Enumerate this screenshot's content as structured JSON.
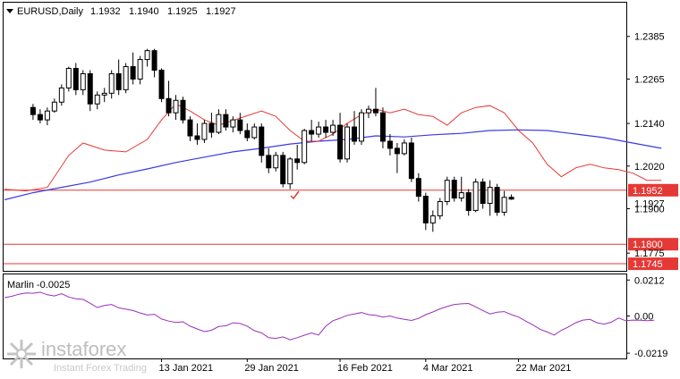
{
  "chart_data": {
    "type": "candlestick",
    "symbol_label": "EURUSD,Daily",
    "ohlc_header": [
      "1.1932",
      "1.1940",
      "1.1925",
      "1.1927"
    ],
    "price_axis": {
      "ylim": [
        1.1725,
        1.248
      ],
      "tick_labels": [
        "1.2385",
        "1.2265",
        "1.2140",
        "1.2020",
        "1.1900",
        "1.1775"
      ]
    },
    "x_tick_labels": [
      "13 Jan 2021",
      "29 Jan 2021",
      "16 Feb 2021",
      "4 Mar 2021",
      "22 Mar 2021"
    ],
    "x_tick_index": [
      22,
      34,
      47,
      59,
      72
    ],
    "levels": [
      {
        "label": "1.1952",
        "value": 1.1952
      },
      {
        "label": "1.1800",
        "value": 1.18
      },
      {
        "label": "1.1745",
        "value": 1.1745
      }
    ],
    "current_price_label": "1.1927",
    "current_price": 1.1927,
    "colors": {
      "level": "#e53935",
      "ma_fast": "#e53935",
      "ma_slow": "#3a3ae6",
      "marlin": "#9b30b8",
      "candle": "#000000"
    },
    "candles": [
      [
        1.2185,
        1.2195,
        1.215,
        1.2165
      ],
      [
        1.2165,
        1.218,
        1.214,
        1.215
      ],
      [
        1.215,
        1.2185,
        1.2135,
        1.2175
      ],
      [
        1.2175,
        1.221,
        1.217,
        1.22
      ],
      [
        1.22,
        1.225,
        1.219,
        1.224
      ],
      [
        1.224,
        1.23,
        1.223,
        1.2295
      ],
      [
        1.2295,
        1.231,
        1.222,
        1.2235
      ],
      [
        1.2235,
        1.229,
        1.222,
        1.228
      ],
      [
        1.228,
        1.229,
        1.2175,
        1.2195
      ],
      [
        1.2195,
        1.223,
        1.218,
        1.222
      ],
      [
        1.222,
        1.224,
        1.22,
        1.2225
      ],
      [
        1.2225,
        1.229,
        1.221,
        1.228
      ],
      [
        1.228,
        1.232,
        1.222,
        1.2235
      ],
      [
        1.2235,
        1.231,
        1.2225,
        1.23
      ],
      [
        1.23,
        1.234,
        1.225,
        1.2265
      ],
      [
        1.2265,
        1.233,
        1.225,
        1.232
      ],
      [
        1.232,
        1.235,
        1.23,
        1.2345
      ],
      [
        1.2345,
        1.235,
        1.227,
        1.229
      ],
      [
        1.229,
        1.2295,
        1.22,
        1.221
      ],
      [
        1.221,
        1.226,
        1.216,
        1.217
      ],
      [
        1.217,
        1.222,
        1.215,
        1.2205
      ],
      [
        1.2205,
        1.2215,
        1.214,
        1.215
      ],
      [
        1.215,
        1.216,
        1.209,
        1.2105
      ],
      [
        1.2105,
        1.214,
        1.208,
        1.2095
      ],
      [
        1.2095,
        1.215,
        1.2085,
        1.214
      ],
      [
        1.214,
        1.217,
        1.21,
        1.2115
      ],
      [
        1.2115,
        1.218,
        1.211,
        1.2165
      ],
      [
        1.2165,
        1.218,
        1.212,
        1.213
      ],
      [
        1.213,
        1.216,
        1.2115,
        1.215
      ],
      [
        1.215,
        1.217,
        1.211,
        1.212
      ],
      [
        1.212,
        1.214,
        1.209,
        1.21
      ],
      [
        1.21,
        1.214,
        1.2095,
        1.213
      ],
      [
        1.213,
        1.214,
        1.203,
        1.205
      ],
      [
        1.205,
        1.207,
        1.2,
        1.2015
      ],
      [
        1.2015,
        1.206,
        1.2005,
        1.205
      ],
      [
        1.205,
        1.206,
        1.196,
        1.197
      ],
      [
        1.197,
        1.2045,
        1.1955,
        1.204
      ],
      [
        1.204,
        1.208,
        1.201,
        1.203
      ],
      [
        1.203,
        1.2125,
        1.2025,
        1.212
      ],
      [
        1.212,
        1.215,
        1.209,
        1.211
      ],
      [
        1.211,
        1.2145,
        1.21,
        1.213
      ],
      [
        1.213,
        1.215,
        1.21,
        1.2115
      ],
      [
        1.2115,
        1.215,
        1.2105,
        1.2135
      ],
      [
        1.2135,
        1.217,
        1.203,
        1.204
      ],
      [
        1.204,
        1.214,
        1.203,
        1.213
      ],
      [
        1.213,
        1.2175,
        1.208,
        1.209
      ],
      [
        1.209,
        1.218,
        1.208,
        1.217
      ],
      [
        1.217,
        1.219,
        1.2155,
        1.218
      ],
      [
        1.218,
        1.224,
        1.216,
        1.217
      ],
      [
        1.217,
        1.2185,
        1.207,
        1.209
      ],
      [
        1.209,
        1.211,
        1.205,
        1.207
      ],
      [
        1.207,
        1.2085,
        1.2,
        1.2055
      ],
      [
        1.2055,
        1.2095,
        1.205,
        1.2085
      ],
      [
        1.2085,
        1.21,
        1.1975,
        1.1985
      ],
      [
        1.1985,
        1.2,
        1.192,
        1.1935
      ],
      [
        1.1935,
        1.1945,
        1.184,
        1.186
      ],
      [
        1.186,
        1.1895,
        1.1835,
        1.188
      ],
      [
        1.188,
        1.193,
        1.187,
        1.192
      ],
      [
        1.192,
        1.199,
        1.191,
        1.198
      ],
      [
        1.198,
        1.199,
        1.192,
        1.193
      ],
      [
        1.193,
        1.199,
        1.192,
        1.1945
      ],
      [
        1.1945,
        1.1955,
        1.188,
        1.1895
      ],
      [
        1.1895,
        1.1985,
        1.189,
        1.1975
      ],
      [
        1.1975,
        1.1985,
        1.19,
        1.1915
      ],
      [
        1.1915,
        1.198,
        1.188,
        1.196
      ],
      [
        1.196,
        1.197,
        1.188,
        1.189
      ],
      [
        1.189,
        1.195,
        1.188,
        1.1932
      ],
      [
        1.1932,
        1.194,
        1.1925,
        1.1927
      ]
    ],
    "x_offset": 4,
    "ma_fast": [
      [
        0,
        1.1955
      ],
      [
        3,
        1.195
      ],
      [
        6,
        1.196
      ],
      [
        9,
        1.205
      ],
      [
        11,
        1.2085
      ],
      [
        14,
        1.2065
      ],
      [
        17,
        1.206
      ],
      [
        20,
        1.2095
      ],
      [
        22,
        1.215
      ],
      [
        24,
        1.2195
      ],
      [
        26,
        1.2175
      ],
      [
        28,
        1.215
      ],
      [
        30,
        1.2135
      ],
      [
        33,
        1.2155
      ],
      [
        36,
        1.2175
      ],
      [
        38,
        1.216
      ],
      [
        40,
        1.212
      ],
      [
        42,
        1.209
      ],
      [
        44,
        1.209
      ],
      [
        46,
        1.211
      ],
      [
        48,
        1.214
      ],
      [
        50,
        1.2165
      ],
      [
        52,
        1.218
      ],
      [
        54,
        1.217
      ],
      [
        56,
        1.218
      ],
      [
        58,
        1.2165
      ],
      [
        60,
        1.216
      ],
      [
        62,
        1.2135
      ],
      [
        64,
        1.217
      ],
      [
        66,
        1.2185
      ],
      [
        68,
        1.219
      ],
      [
        70,
        1.217
      ],
      [
        72,
        1.212
      ],
      [
        74,
        1.2085
      ],
      [
        76,
        1.2025
      ],
      [
        78,
        1.199
      ],
      [
        80,
        1.2015
      ],
      [
        82,
        1.2025
      ],
      [
        84,
        1.2015
      ],
      [
        86,
        1.201
      ],
      [
        88,
        1.2
      ],
      [
        90,
        1.198
      ],
      [
        92,
        1.198
      ]
    ],
    "ma_slow": [
      [
        0,
        1.1925
      ],
      [
        4,
        1.1945
      ],
      [
        8,
        1.196
      ],
      [
        12,
        1.1975
      ],
      [
        16,
        1.1995
      ],
      [
        20,
        1.2012
      ],
      [
        24,
        1.203
      ],
      [
        28,
        1.2045
      ],
      [
        32,
        1.206
      ],
      [
        36,
        1.207
      ],
      [
        40,
        1.2082
      ],
      [
        44,
        1.209
      ],
      [
        48,
        1.2095
      ],
      [
        52,
        1.2105
      ],
      [
        56,
        1.2102
      ],
      [
        60,
        1.2108
      ],
      [
        64,
        1.2112
      ],
      [
        68,
        1.212
      ],
      [
        72,
        1.2122
      ],
      [
        76,
        1.212
      ],
      [
        80,
        1.211
      ],
      [
        84,
        1.21
      ],
      [
        88,
        1.2085
      ],
      [
        92,
        1.207
      ]
    ],
    "marlin": {
      "label": "Marlin -0.0025",
      "ylim": [
        -0.025,
        0.0245
      ],
      "tick_labels": [
        "0.0212",
        "0.00",
        "-0.0219"
      ],
      "tick_values": [
        0.0212,
        0.0,
        -0.0219
      ],
      "values": [
        0.0108,
        0.0116,
        0.0128,
        0.0136,
        0.0134,
        0.014,
        0.0125,
        0.0118,
        0.0132,
        0.0112,
        0.0102,
        0.0098,
        0.0075,
        0.005,
        0.0062,
        0.0068,
        0.0048,
        0.004,
        0.0032,
        0.0018,
        0.0006,
        0.001,
        -0.0018,
        -0.003,
        -0.0038,
        -0.0034,
        -0.006,
        -0.0076,
        -0.0092,
        -0.0084,
        -0.0062,
        -0.0058,
        -0.004,
        -0.0044,
        -0.006,
        -0.0086,
        -0.01,
        -0.0128,
        -0.0132,
        -0.0123,
        -0.014,
        -0.0128,
        -0.0113,
        -0.01,
        -0.0112,
        -0.006,
        -0.0028,
        -0.0013,
        0.0004,
        0.0012,
        0.002,
        0.0008,
        0.0004,
        -0.0006,
        0.0,
        -0.0012,
        -0.002,
        -0.0026,
        -0.0014,
        0.0008,
        0.0024,
        0.0042,
        0.0056,
        0.0068,
        0.0072,
        0.0074,
        0.0054,
        0.0032,
        0.0012,
        0.0022,
        0.0026,
        0.0008,
        -0.0006,
        -0.003,
        -0.0052,
        -0.0078,
        -0.0094,
        -0.0112,
        -0.0084,
        -0.0064,
        -0.004,
        -0.0024,
        -0.002,
        -0.004,
        -0.0048,
        -0.0036,
        -0.0012,
        -0.0028,
        -0.0024,
        -0.0025,
        -0.0028,
        -0.0025
      ]
    }
  },
  "watermark": {
    "name": "instaforex",
    "tagline": "Instant Forex Trading"
  }
}
